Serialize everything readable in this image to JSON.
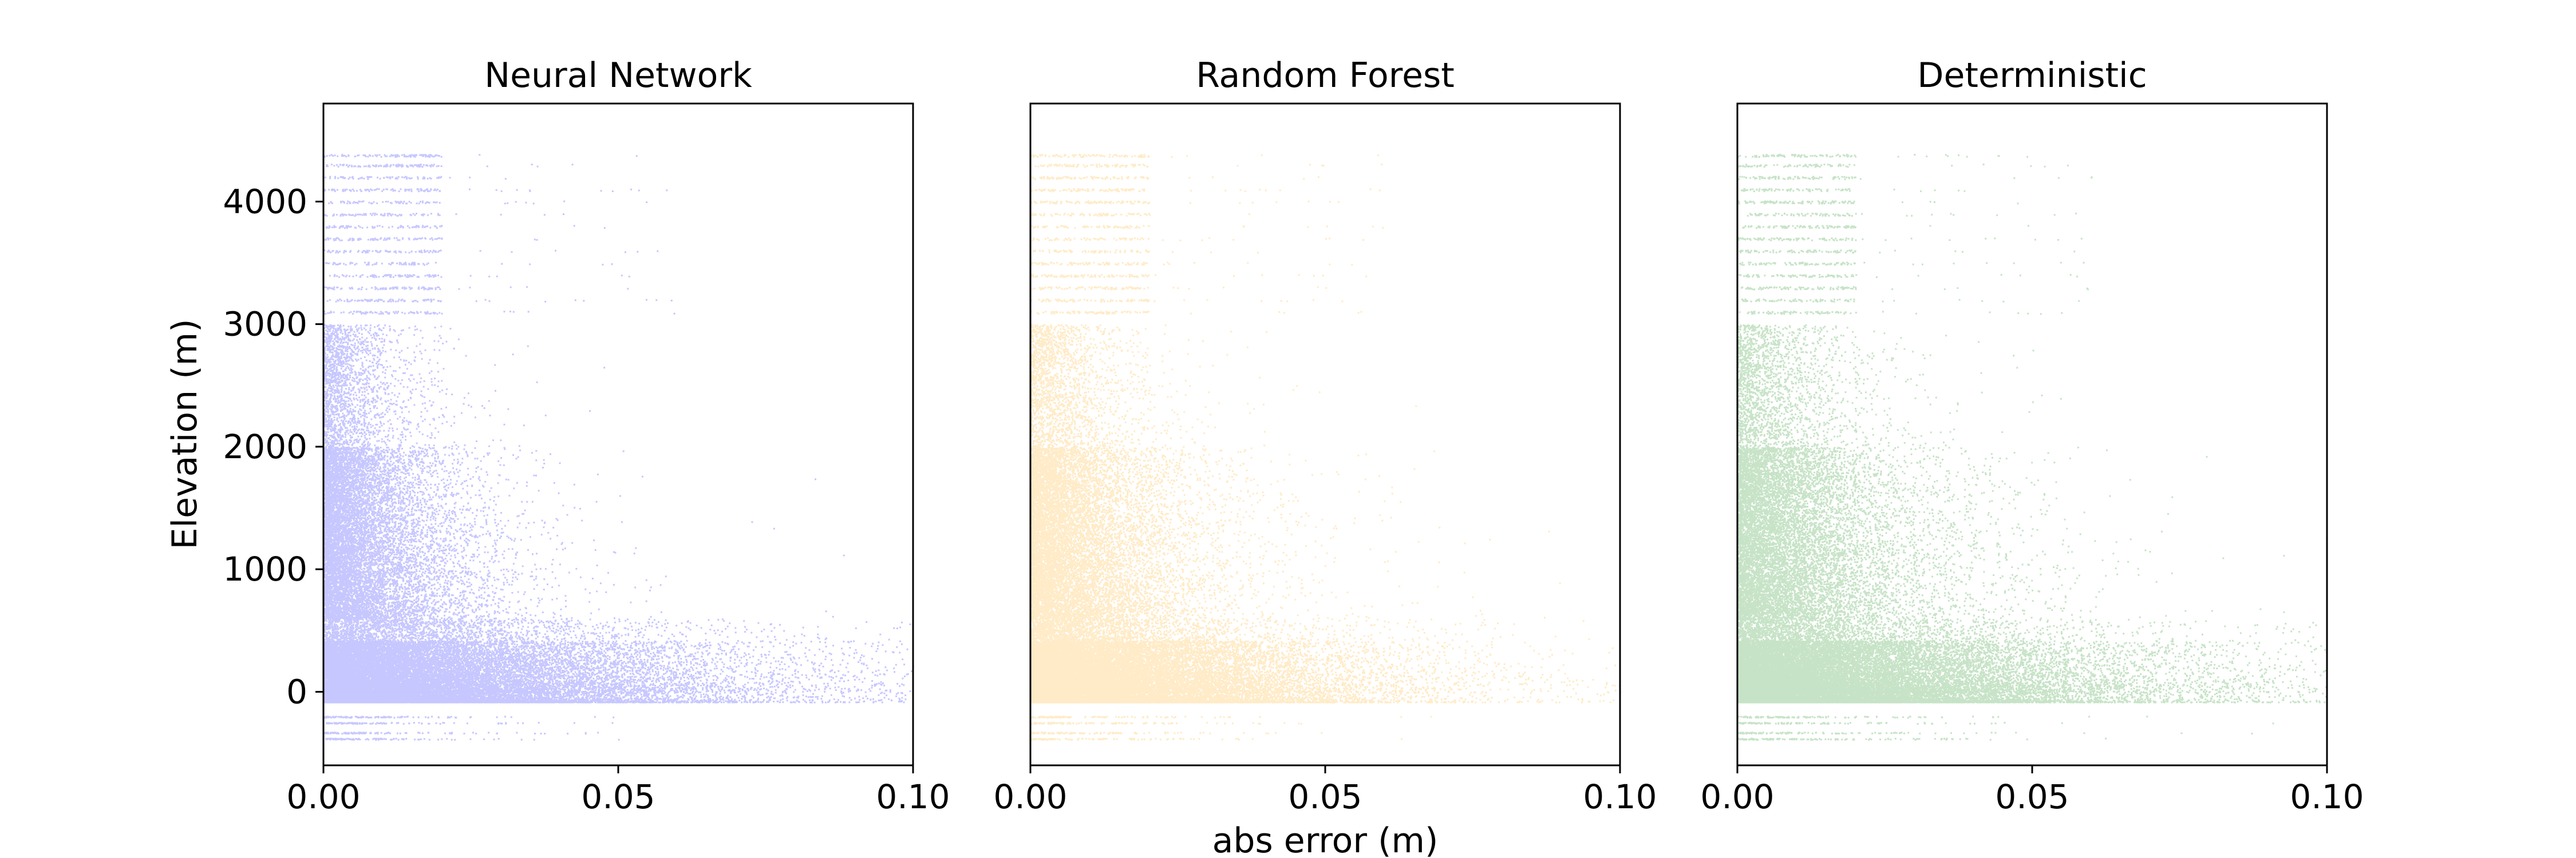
{
  "chart_data": [
    {
      "type": "scatter",
      "title": "Neural Network",
      "color": "#0000ff",
      "xlabel": "",
      "ylabel": "Elevation (m)",
      "xlim": [
        0,
        0.1
      ],
      "ylim": [
        -600,
        4800
      ],
      "xticks": [
        "0.00",
        "0.05",
        "0.10"
      ],
      "yticks": [
        "0",
        "1000",
        "2000",
        "3000",
        "4000"
      ],
      "grid": false,
      "shape": {
        "base_scale": 0.01,
        "scale_growth_per_1000m": 0.0022,
        "y_range": [
          -380,
          4560
        ],
        "x_max_outlier": 0.1
      }
    },
    {
      "type": "scatter",
      "title": "Random Forest",
      "color": "#ffa500",
      "xlabel": "abs error (m)",
      "ylabel": "",
      "xlim": [
        0,
        0.1
      ],
      "ylim": [
        -600,
        4800
      ],
      "xticks": [
        "0.00",
        "0.05",
        "0.10"
      ],
      "yticks": [],
      "grid": false,
      "shape": {
        "base_scale": 0.012,
        "scale_growth_per_1000m": 0.001,
        "y_range": [
          -380,
          4560
        ],
        "x_max_outlier": 0.1
      }
    },
    {
      "type": "scatter",
      "title": "Deterministic",
      "color": "#008000",
      "xlabel": "",
      "ylabel": "",
      "xlim": [
        0,
        0.1
      ],
      "ylim": [
        -600,
        4800
      ],
      "xticks": [
        "0.00",
        "0.05",
        "0.10"
      ],
      "yticks": [],
      "grid": false,
      "shape": {
        "base_scale": 0.014,
        "scale_growth_per_1000m": 0.0015,
        "y_range": [
          -380,
          4560
        ],
        "x_max_outlier": 0.1
      }
    }
  ]
}
